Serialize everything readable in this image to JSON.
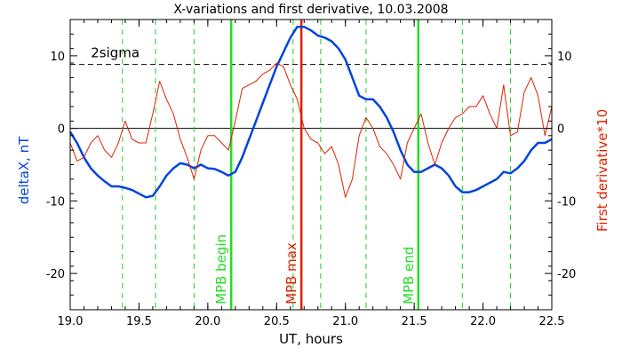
{
  "chart_data": {
    "type": "line",
    "title": "X-variations and first derivative, 10.03.2008",
    "xlabel": "UT, hours",
    "ylabel_left": "deltaX, nT",
    "ylabel_right": "First derivative*10",
    "xlim": [
      19.0,
      22.5
    ],
    "ylim": [
      -25,
      15
    ],
    "x_ticks": [
      19.0,
      19.5,
      20.0,
      20.5,
      21.0,
      21.5,
      22.0,
      22.5
    ],
    "x_tick_labels": [
      "19.0",
      "19.5",
      "20.0",
      "20.5",
      "21.0",
      "21.5",
      "22.0",
      "22.5"
    ],
    "y_ticks": [
      10,
      0,
      -10,
      -20
    ],
    "y_tick_labels": [
      "10",
      "0",
      "-10",
      "-20"
    ],
    "threshold": {
      "label": "2sigma",
      "value": 8.8
    },
    "colors": {
      "series_deltaX": "#0044dd",
      "series_derivative": "#dd2200",
      "mpb_green": "#22dd22",
      "mpb_red": "#dd2200",
      "dashed_green": "#22cc22"
    },
    "dashed_markers": [
      19.38,
      19.62,
      19.9,
      20.62,
      20.82,
      21.15,
      21.85,
      22.2
    ],
    "mpb_lines": [
      {
        "x": 20.17,
        "label": "MPB begin",
        "color": "#22dd22"
      },
      {
        "x": 20.68,
        "label": "MPB max",
        "color": "#dd2200"
      },
      {
        "x": 21.53,
        "label": "MPB end",
        "color": "#22dd22"
      }
    ],
    "series": [
      {
        "name": "deltaX, nT",
        "x": [
          19.0,
          19.05,
          19.1,
          19.15,
          19.2,
          19.25,
          19.3,
          19.35,
          19.4,
          19.45,
          19.5,
          19.55,
          19.6,
          19.65,
          19.7,
          19.75,
          19.8,
          19.85,
          19.9,
          19.95,
          20.0,
          20.05,
          20.1,
          20.15,
          20.2,
          20.25,
          20.3,
          20.35,
          20.4,
          20.45,
          20.5,
          20.55,
          20.6,
          20.65,
          20.7,
          20.75,
          20.8,
          20.85,
          20.9,
          20.95,
          21.0,
          21.05,
          21.1,
          21.15,
          21.2,
          21.25,
          21.3,
          21.35,
          21.4,
          21.45,
          21.5,
          21.55,
          21.6,
          21.65,
          21.7,
          21.75,
          21.8,
          21.85,
          21.9,
          21.95,
          22.0,
          22.05,
          22.1,
          22.15,
          22.2,
          22.25,
          22.3,
          22.35,
          22.4,
          22.45,
          22.5
        ],
        "values": [
          -0.5,
          -2.0,
          -4.0,
          -5.5,
          -6.5,
          -7.3,
          -8.0,
          -8.0,
          -8.2,
          -8.5,
          -9.0,
          -9.5,
          -9.3,
          -8.0,
          -6.5,
          -5.5,
          -4.8,
          -5.0,
          -5.5,
          -5.0,
          -5.5,
          -5.6,
          -6.0,
          -6.5,
          -6.0,
          -4.0,
          -1.5,
          1.0,
          3.5,
          6.0,
          8.5,
          10.5,
          12.5,
          14.0,
          14.0,
          13.5,
          12.8,
          12.5,
          12.0,
          11.0,
          9.5,
          7.0,
          4.5,
          4.0,
          4.0,
          3.0,
          1.5,
          -0.5,
          -3.0,
          -5.0,
          -6.0,
          -6.0,
          -5.5,
          -5.0,
          -5.5,
          -6.5,
          -8.0,
          -8.8,
          -8.8,
          -8.5,
          -8.0,
          -7.5,
          -7.0,
          -6.0,
          -6.2,
          -5.5,
          -4.5,
          -3.0,
          -2.0,
          -2.0,
          -1.5
        ]
      },
      {
        "name": "First derivative*10",
        "x": [
          19.0,
          19.05,
          19.1,
          19.15,
          19.2,
          19.25,
          19.3,
          19.35,
          19.4,
          19.45,
          19.5,
          19.55,
          19.6,
          19.65,
          19.7,
          19.75,
          19.8,
          19.85,
          19.9,
          19.95,
          20.0,
          20.05,
          20.1,
          20.15,
          20.2,
          20.25,
          20.3,
          20.35,
          20.4,
          20.45,
          20.5,
          20.55,
          20.6,
          20.65,
          20.7,
          20.75,
          20.8,
          20.85,
          20.9,
          20.95,
          21.0,
          21.05,
          21.1,
          21.15,
          21.2,
          21.25,
          21.3,
          21.35,
          21.4,
          21.45,
          21.5,
          21.55,
          21.6,
          21.65,
          21.7,
          21.75,
          21.8,
          21.85,
          21.9,
          21.95,
          22.0,
          22.05,
          22.1,
          22.15,
          22.2,
          22.25,
          22.3,
          22.35,
          22.4,
          22.45,
          22.5
        ],
        "values": [
          -2.0,
          -4.5,
          -4.0,
          -2.0,
          -1.0,
          -3.0,
          -4.0,
          -2.0,
          1.0,
          -1.5,
          -2.0,
          -2.0,
          2.0,
          6.5,
          4.0,
          2.0,
          -1.5,
          -4.0,
          -7.0,
          -3.0,
          -1.0,
          -1.0,
          -2.0,
          -3.0,
          1.0,
          5.5,
          6.0,
          6.5,
          7.5,
          8.0,
          9.0,
          8.5,
          6.0,
          4.0,
          0.0,
          -1.5,
          -2.0,
          -3.5,
          -2.5,
          -5.0,
          -9.5,
          -7.0,
          -1.0,
          1.5,
          0.0,
          -2.5,
          -3.5,
          -5.0,
          -7.0,
          -2.0,
          0.0,
          2.0,
          -2.0,
          -5.0,
          -2.0,
          0.0,
          1.5,
          2.0,
          3.0,
          3.0,
          4.5,
          2.0,
          0.0,
          6.0,
          -1.0,
          -0.5,
          5.0,
          7.0,
          4.5,
          -1.0,
          3.0
        ]
      }
    ]
  }
}
